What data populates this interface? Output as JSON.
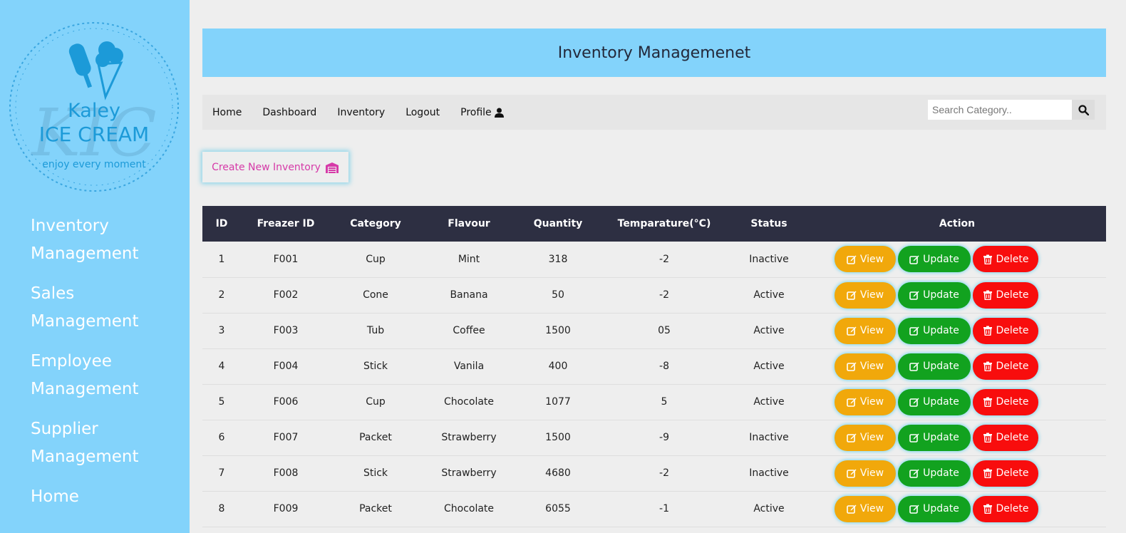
{
  "brand": {
    "name_line1": "Kaley",
    "name_line2": "ICE CREAM",
    "tagline": "enjoy every moment",
    "watermark": "KIC"
  },
  "sidebar": {
    "items": [
      {
        "label": "Inventory Management"
      },
      {
        "label": "Sales Management"
      },
      {
        "label": "Employee Management"
      },
      {
        "label": "Supplier Management"
      },
      {
        "label": "Home"
      }
    ]
  },
  "header": {
    "title": "Inventory Managemenet"
  },
  "navbar": {
    "links": [
      {
        "label": "Home"
      },
      {
        "label": "Dashboard"
      },
      {
        "label": "Inventory"
      },
      {
        "label": "Logout"
      },
      {
        "label": "Profile"
      }
    ],
    "search": {
      "placeholder": "Search Category.."
    }
  },
  "create_button": {
    "label": "Create New Inventory"
  },
  "table": {
    "columns": [
      "ID",
      "Freazer ID",
      "Category",
      "Flavour",
      "Quantity",
      "Temparature(°C)",
      "Status",
      "Action"
    ],
    "rows": [
      [
        "1",
        "F001",
        "Cup",
        "Mint",
        "318",
        "-2",
        "Inactive"
      ],
      [
        "2",
        "F002",
        "Cone",
        "Banana",
        "50",
        "-2",
        "Active"
      ],
      [
        "3",
        "F003",
        "Tub",
        "Coffee",
        "1500",
        "05",
        "Active"
      ],
      [
        "4",
        "F004",
        "Stick",
        "Vanila",
        "400",
        "-8",
        "Active"
      ],
      [
        "5",
        "F006",
        "Cup",
        "Chocolate",
        "1077",
        "5",
        "Active"
      ],
      [
        "6",
        "F007",
        "Packet",
        "Strawberry",
        "1500",
        "-9",
        "Inactive"
      ],
      [
        "7",
        "F008",
        "Stick",
        "Strawberry",
        "4680",
        "-2",
        "Inactive"
      ],
      [
        "8",
        "F009",
        "Packet",
        "Chocolate",
        "6055",
        "-1",
        "Active"
      ]
    ],
    "actions": {
      "view": "View",
      "update": "Update",
      "delete": "Delete"
    }
  },
  "colors": {
    "sidebar_bg": "#83d3fb",
    "header_dark": "#2d2f42",
    "view": "#f1a80b",
    "update": "#12a21f",
    "delete": "#f80d0d",
    "create_text": "#d63aa8"
  }
}
